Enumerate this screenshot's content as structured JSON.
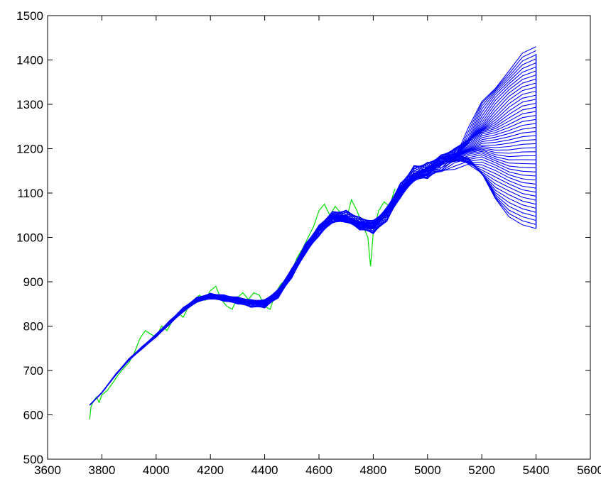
{
  "chart_data": {
    "type": "line",
    "title": "",
    "xlabel": "",
    "ylabel": "",
    "xlim": [
      3600,
      5600
    ],
    "ylim": [
      500,
      1500
    ],
    "grid": false,
    "legend": "none",
    "x_ticks": [
      3600,
      3800,
      4000,
      4200,
      4400,
      4600,
      4800,
      5000,
      5200,
      5400,
      5600
    ],
    "y_ticks": [
      500,
      600,
      700,
      800,
      900,
      1000,
      1100,
      1200,
      1300,
      1400,
      1500
    ],
    "x_tick_labels": [
      "3600",
      "3800",
      "4000",
      "4200",
      "4400",
      "4600",
      "4800",
      "5000",
      "5200",
      "5400",
      "5600"
    ],
    "y_tick_labels": [
      "500",
      "600",
      "700",
      "800",
      "900",
      "1000",
      "1100",
      "1200",
      "1300",
      "1400",
      "1500"
    ],
    "series": [
      {
        "color": "#00dd00",
        "style": "noisy observed series",
        "x": [
          3755,
          3760,
          3770,
          3780,
          3790,
          3800,
          3820,
          3840,
          3860,
          3880,
          3900,
          3920,
          3940,
          3960,
          3980,
          4000,
          4020,
          4040,
          4060,
          4080,
          4100,
          4120,
          4140,
          4160,
          4180,
          4200,
          4220,
          4240,
          4260,
          4280,
          4300,
          4320,
          4340,
          4360,
          4380,
          4400,
          4420,
          4440,
          4460,
          4480,
          4500,
          4520,
          4540,
          4560,
          4580,
          4600,
          4620,
          4640,
          4660,
          4680,
          4700,
          4720,
          4740,
          4760,
          4780,
          4790,
          4800,
          4820,
          4840,
          4860,
          4880
        ],
        "y": [
          590,
          618,
          632,
          640,
          628,
          645,
          655,
          672,
          690,
          705,
          718,
          740,
          772,
          790,
          782,
          775,
          800,
          790,
          812,
          830,
          820,
          845,
          860,
          870,
          858,
          880,
          890,
          860,
          845,
          838,
          865,
          875,
          860,
          875,
          870,
          845,
          838,
          875,
          895,
          905,
          925,
          955,
          975,
          1000,
          1025,
          1060,
          1075,
          1050,
          1070,
          1055,
          1040,
          1085,
          1060,
          1030,
          1000,
          935,
          1010,
          1060,
          1080,
          1070,
          1110
        ]
      },
      {
        "color": "#0000ff",
        "style": "fan of forecast paths",
        "center_x": [
          3755,
          3800,
          3850,
          3900,
          3950,
          4000,
          4050,
          4100,
          4150,
          4200,
          4250,
          4300,
          4350,
          4400,
          4450,
          4500,
          4550,
          4600,
          4650,
          4700,
          4750,
          4800,
          4850,
          4900,
          4950,
          5000,
          5050,
          5100,
          5150,
          5200,
          5250,
          5300,
          5350,
          5400
        ],
        "center_y": [
          622,
          650,
          690,
          725,
          752,
          778,
          808,
          838,
          860,
          867,
          862,
          858,
          853,
          851,
          872,
          918,
          975,
          1018,
          1046,
          1045,
          1030,
          1025,
          1055,
          1105,
          1140,
          1150,
          1170,
          1180,
          1190,
          1200,
          1190,
          1180,
          1185,
          1190
        ],
        "final_range": [
          1020,
          1430
        ]
      }
    ]
  }
}
